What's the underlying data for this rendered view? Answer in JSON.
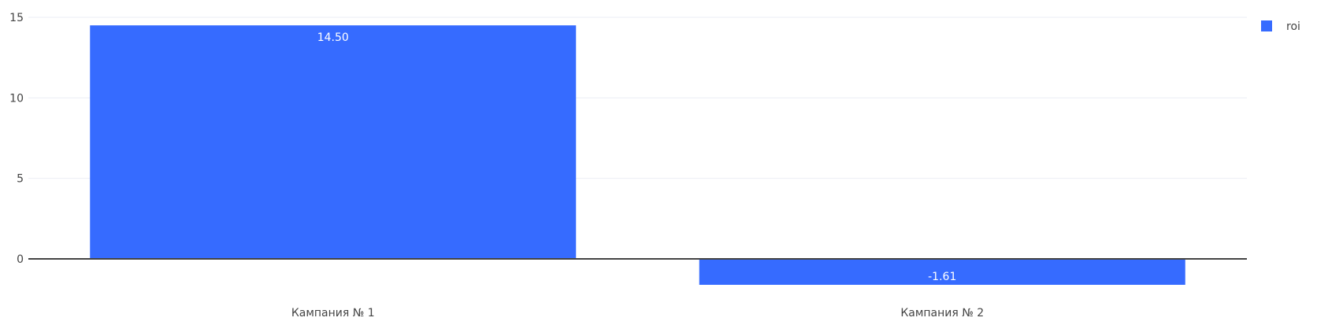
{
  "chart_data": {
    "type": "bar",
    "categories": [
      "Кампания № 1",
      "Кампания № 2"
    ],
    "series": [
      {
        "name": "roi",
        "values": [
          14.5,
          -1.61
        ],
        "labels": [
          "14.50",
          "-1.61"
        ],
        "color": "#366bff"
      }
    ],
    "ylim": [
      -2.1,
      15.2
    ],
    "yticks": [
      0,
      5,
      10,
      15
    ],
    "ytick_labels": [
      "0",
      "5",
      "10",
      "15"
    ],
    "grid": true,
    "legend_position": "top-right",
    "colors": {
      "bar": "#366bff",
      "grid": "#ebeef5",
      "zero_line": "#444444",
      "text": "#444444",
      "bar_label": "#ffffff"
    }
  }
}
